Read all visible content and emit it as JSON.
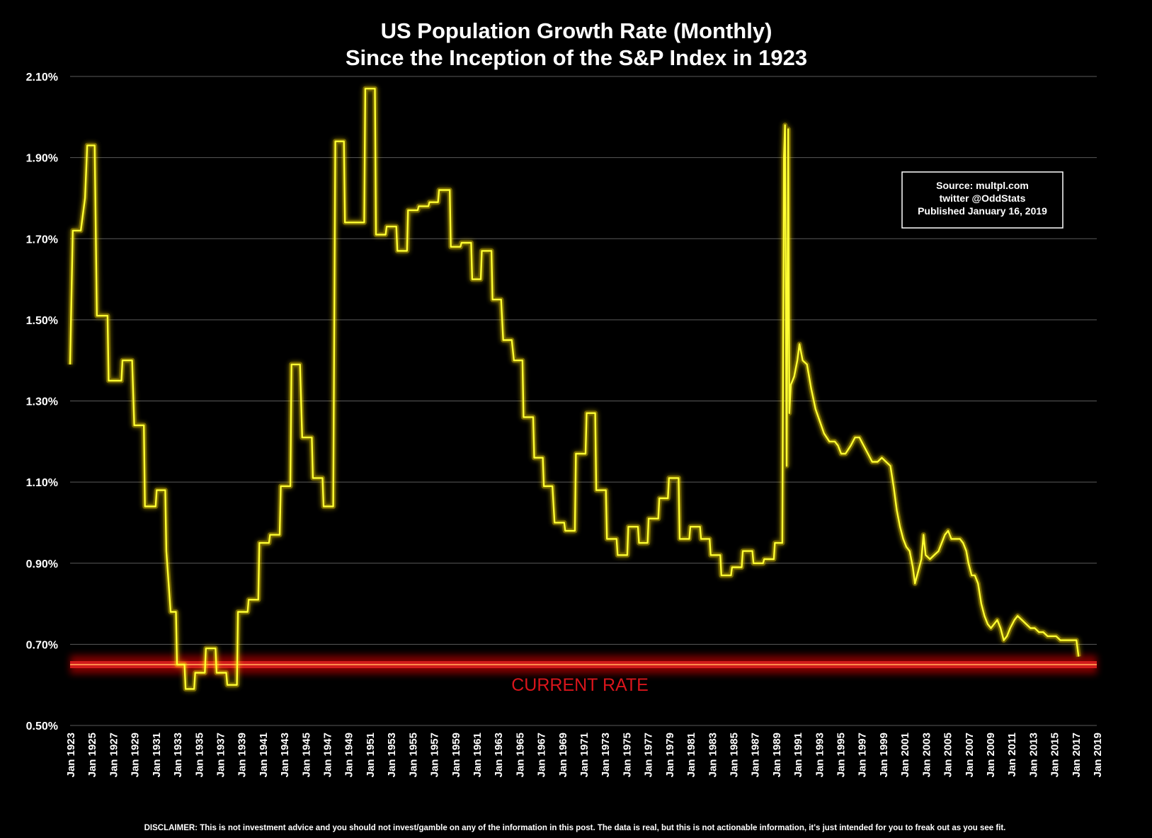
{
  "chart_data": {
    "type": "line",
    "title": "US Population Growth Rate (Monthly)",
    "subtitle": "Since the Inception of the S&P Index in 1923",
    "xlabel": "",
    "ylabel": "",
    "ylim": [
      0.5,
      2.1
    ],
    "xlim": [
      1923,
      2019
    ],
    "y_ticks": [
      "2.10%",
      "1.90%",
      "1.70%",
      "1.50%",
      "1.30%",
      "1.10%",
      "0.90%",
      "0.70%",
      "0.50%"
    ],
    "y_tick_values": [
      2.1,
      1.9,
      1.7,
      1.5,
      1.3,
      1.1,
      0.9,
      0.7,
      0.5
    ],
    "x_ticks": [
      "Jan 1923",
      "Jan 1925",
      "Jan 1927",
      "Jan 1929",
      "Jan 1931",
      "Jan 1933",
      "Jan 1935",
      "Jan 1937",
      "Jan 1939",
      "Jan 1941",
      "Jan 1943",
      "Jan 1945",
      "Jan 1947",
      "Jan 1949",
      "Jan 1951",
      "Jan 1953",
      "Jan 1955",
      "Jan 1957",
      "Jan 1959",
      "Jan 1961",
      "Jan 1963",
      "Jan 1965",
      "Jan 1967",
      "Jan 1969",
      "Jan 1971",
      "Jan 1973",
      "Jan 1975",
      "Jan 1977",
      "Jan 1979",
      "Jan 1981",
      "Jan 1983",
      "Jan 1985",
      "Jan 1987",
      "Jan 1989",
      "Jan 1991",
      "Jan 1993",
      "Jan 1995",
      "Jan 1997",
      "Jan 1999",
      "Jan 2001",
      "Jan 2003",
      "Jan 2005",
      "Jan 2007",
      "Jan 2009",
      "Jan 2011",
      "Jan 2013",
      "Jan 2015",
      "Jan 2017",
      "Jan 2019"
    ],
    "grid": true,
    "series": [
      {
        "name": "",
        "color": "#ffff33",
        "step": true,
        "values": [
          [
            1923.0,
            1.39
          ],
          [
            1923.25,
            1.72
          ],
          [
            1924.0,
            1.72
          ],
          [
            1924.4,
            1.8
          ],
          [
            1924.6,
            1.93
          ],
          [
            1925.3,
            1.93
          ],
          [
            1925.5,
            1.51
          ],
          [
            1926.5,
            1.51
          ],
          [
            1926.6,
            1.35
          ],
          [
            1927.8,
            1.35
          ],
          [
            1927.9,
            1.4
          ],
          [
            1928.8,
            1.4
          ],
          [
            1929.0,
            1.24
          ],
          [
            1929.9,
            1.24
          ],
          [
            1930.0,
            1.04
          ],
          [
            1931.0,
            1.04
          ],
          [
            1931.1,
            1.08
          ],
          [
            1931.9,
            1.08
          ],
          [
            1932.0,
            0.93
          ],
          [
            1932.4,
            0.78
          ],
          [
            1932.9,
            0.78
          ],
          [
            1933.0,
            0.65
          ],
          [
            1933.7,
            0.65
          ],
          [
            1933.8,
            0.59
          ],
          [
            1934.6,
            0.59
          ],
          [
            1934.7,
            0.63
          ],
          [
            1935.6,
            0.63
          ],
          [
            1935.7,
            0.69
          ],
          [
            1936.6,
            0.69
          ],
          [
            1936.7,
            0.63
          ],
          [
            1937.6,
            0.63
          ],
          [
            1937.7,
            0.6
          ],
          [
            1938.6,
            0.6
          ],
          [
            1938.7,
            0.78
          ],
          [
            1939.6,
            0.78
          ],
          [
            1939.7,
            0.81
          ],
          [
            1940.6,
            0.81
          ],
          [
            1940.7,
            0.95
          ],
          [
            1941.6,
            0.95
          ],
          [
            1941.7,
            0.97
          ],
          [
            1942.6,
            0.97
          ],
          [
            1942.7,
            1.09
          ],
          [
            1943.6,
            1.09
          ],
          [
            1943.7,
            1.39
          ],
          [
            1944.5,
            1.39
          ],
          [
            1944.7,
            1.21
          ],
          [
            1945.6,
            1.21
          ],
          [
            1945.7,
            1.11
          ],
          [
            1946.6,
            1.11
          ],
          [
            1946.7,
            1.04
          ],
          [
            1947.6,
            1.04
          ],
          [
            1947.8,
            1.94
          ],
          [
            1948.6,
            1.94
          ],
          [
            1948.7,
            1.74
          ],
          [
            1950.5,
            1.74
          ],
          [
            1950.6,
            2.07
          ],
          [
            1951.5,
            2.07
          ],
          [
            1951.6,
            1.71
          ],
          [
            1952.5,
            1.71
          ],
          [
            1952.6,
            1.73
          ],
          [
            1953.5,
            1.73
          ],
          [
            1953.6,
            1.67
          ],
          [
            1954.5,
            1.67
          ],
          [
            1954.6,
            1.77
          ],
          [
            1955.5,
            1.77
          ],
          [
            1955.6,
            1.78
          ],
          [
            1956.5,
            1.78
          ],
          [
            1956.6,
            1.79
          ],
          [
            1957.4,
            1.79
          ],
          [
            1957.5,
            1.82
          ],
          [
            1958.5,
            1.82
          ],
          [
            1958.6,
            1.68
          ],
          [
            1959.5,
            1.68
          ],
          [
            1959.6,
            1.69
          ],
          [
            1960.5,
            1.69
          ],
          [
            1960.6,
            1.6
          ],
          [
            1961.4,
            1.6
          ],
          [
            1961.5,
            1.67
          ],
          [
            1962.4,
            1.67
          ],
          [
            1962.5,
            1.55
          ],
          [
            1963.3,
            1.55
          ],
          [
            1963.5,
            1.45
          ],
          [
            1964.3,
            1.45
          ],
          [
            1964.5,
            1.4
          ],
          [
            1965.3,
            1.4
          ],
          [
            1965.4,
            1.26
          ],
          [
            1966.3,
            1.26
          ],
          [
            1966.4,
            1.16
          ],
          [
            1967.2,
            1.16
          ],
          [
            1967.3,
            1.09
          ],
          [
            1968.1,
            1.09
          ],
          [
            1968.3,
            1.0
          ],
          [
            1969.2,
            1.0
          ],
          [
            1969.3,
            0.98
          ],
          [
            1970.2,
            0.98
          ],
          [
            1970.3,
            1.17
          ],
          [
            1971.2,
            1.17
          ],
          [
            1971.3,
            1.27
          ],
          [
            1972.1,
            1.27
          ],
          [
            1972.2,
            1.08
          ],
          [
            1973.1,
            1.08
          ],
          [
            1973.2,
            0.96
          ],
          [
            1974.1,
            0.96
          ],
          [
            1974.2,
            0.92
          ],
          [
            1975.1,
            0.92
          ],
          [
            1975.2,
            0.99
          ],
          [
            1976.1,
            0.99
          ],
          [
            1976.2,
            0.95
          ],
          [
            1977.0,
            0.95
          ],
          [
            1977.1,
            1.01
          ],
          [
            1978.0,
            1.01
          ],
          [
            1978.1,
            1.06
          ],
          [
            1978.9,
            1.06
          ],
          [
            1979.0,
            1.11
          ],
          [
            1979.9,
            1.11
          ],
          [
            1980.0,
            0.96
          ],
          [
            1980.9,
            0.96
          ],
          [
            1981.0,
            0.99
          ],
          [
            1981.9,
            0.99
          ],
          [
            1982.0,
            0.96
          ],
          [
            1982.8,
            0.96
          ],
          [
            1982.9,
            0.92
          ],
          [
            1983.8,
            0.92
          ],
          [
            1983.9,
            0.87
          ],
          [
            1984.8,
            0.87
          ],
          [
            1984.9,
            0.89
          ],
          [
            1985.8,
            0.89
          ],
          [
            1985.9,
            0.93
          ],
          [
            1986.8,
            0.93
          ],
          [
            1986.9,
            0.9
          ],
          [
            1987.8,
            0.9
          ],
          [
            1987.9,
            0.91
          ],
          [
            1988.8,
            0.91
          ],
          [
            1988.9,
            0.95
          ],
          [
            1989.6,
            0.95
          ],
          [
            1989.75,
            1.9
          ],
          [
            1989.85,
            1.98
          ],
          [
            1990.0,
            1.14
          ],
          [
            1990.15,
            1.97
          ],
          [
            1990.25,
            1.27
          ],
          [
            1990.4,
            1.34
          ],
          [
            1990.7,
            1.36
          ],
          [
            1991.0,
            1.4
          ],
          [
            1991.2,
            1.44
          ],
          [
            1991.5,
            1.4
          ],
          [
            1991.9,
            1.39
          ],
          [
            1992.3,
            1.33
          ],
          [
            1992.7,
            1.28
          ],
          [
            1993.1,
            1.25
          ],
          [
            1993.5,
            1.22
          ],
          [
            1994.0,
            1.2
          ],
          [
            1994.5,
            1.2
          ],
          [
            1994.8,
            1.19
          ],
          [
            1995.1,
            1.17
          ],
          [
            1995.5,
            1.17
          ],
          [
            1996.0,
            1.19
          ],
          [
            1996.4,
            1.21
          ],
          [
            1996.8,
            1.21
          ],
          [
            1997.2,
            1.19
          ],
          [
            1997.6,
            1.17
          ],
          [
            1998.0,
            1.15
          ],
          [
            1998.5,
            1.15
          ],
          [
            1998.9,
            1.16
          ],
          [
            1999.3,
            1.15
          ],
          [
            1999.7,
            1.14
          ],
          [
            2000.0,
            1.09
          ],
          [
            2000.3,
            1.03
          ],
          [
            2000.6,
            0.99
          ],
          [
            2000.9,
            0.96
          ],
          [
            2001.2,
            0.94
          ],
          [
            2001.5,
            0.93
          ],
          [
            2001.8,
            0.89
          ],
          [
            2002.0,
            0.85
          ],
          [
            2002.3,
            0.88
          ],
          [
            2002.6,
            0.91
          ],
          [
            2002.8,
            0.97
          ],
          [
            2003.0,
            0.92
          ],
          [
            2003.4,
            0.91
          ],
          [
            2003.8,
            0.92
          ],
          [
            2004.2,
            0.93
          ],
          [
            2004.5,
            0.95
          ],
          [
            2004.8,
            0.97
          ],
          [
            2005.1,
            0.98
          ],
          [
            2005.4,
            0.96
          ],
          [
            2005.8,
            0.96
          ],
          [
            2006.2,
            0.96
          ],
          [
            2006.5,
            0.95
          ],
          [
            2006.8,
            0.93
          ],
          [
            2007.0,
            0.9
          ],
          [
            2007.3,
            0.87
          ],
          [
            2007.6,
            0.87
          ],
          [
            2007.9,
            0.85
          ],
          [
            2008.2,
            0.8
          ],
          [
            2008.5,
            0.77
          ],
          [
            2008.8,
            0.75
          ],
          [
            2009.1,
            0.74
          ],
          [
            2009.4,
            0.75
          ],
          [
            2009.7,
            0.76
          ],
          [
            2010.0,
            0.74
          ],
          [
            2010.3,
            0.71
          ],
          [
            2010.6,
            0.72
          ],
          [
            2010.9,
            0.74
          ],
          [
            2011.3,
            0.76
          ],
          [
            2011.6,
            0.77
          ],
          [
            2012.0,
            0.76
          ],
          [
            2012.4,
            0.75
          ],
          [
            2012.8,
            0.74
          ],
          [
            2013.2,
            0.74
          ],
          [
            2013.6,
            0.73
          ],
          [
            2014.0,
            0.73
          ],
          [
            2014.4,
            0.72
          ],
          [
            2014.8,
            0.72
          ],
          [
            2015.2,
            0.72
          ],
          [
            2015.6,
            0.71
          ],
          [
            2016.0,
            0.71
          ],
          [
            2016.4,
            0.71
          ],
          [
            2016.8,
            0.71
          ],
          [
            2017.1,
            0.71
          ],
          [
            2017.3,
            0.67
          ]
        ]
      }
    ],
    "reference_line": {
      "value": 0.65,
      "label": "CURRENT RATE",
      "color": "#d8151b"
    }
  },
  "source_box": {
    "line1": "Source: multpl.com",
    "line2": "twitter @OddStats",
    "line3": "Published January 16, 2019"
  },
  "disclaimer": "DISCLAIMER: This is not investment advice and you should not invest/gamble on any of the information in this post. The data is real, but this is not actionable information, it's just intended for you to freak out as you see fit.",
  "colors": {
    "background": "#000000",
    "line": "#ffff33",
    "glow": "#ffe100",
    "reference": "#d8151b",
    "grid": "#5a5a5a"
  }
}
